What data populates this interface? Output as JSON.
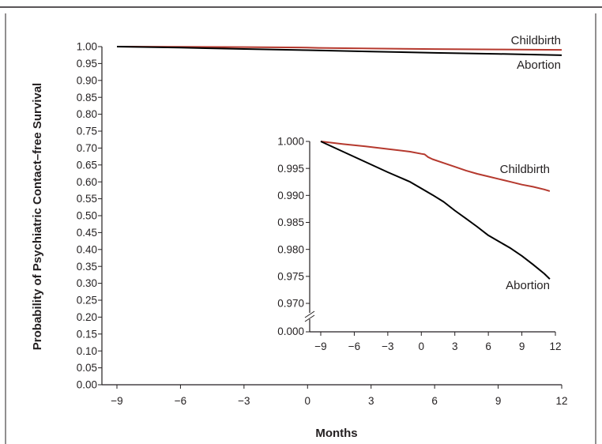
{
  "chart_data": [
    {
      "id": "main",
      "type": "line",
      "xlabel": "Months",
      "ylabel": "Probability of Psychiatric Contact–free Survival",
      "xlim": [
        -9,
        12
      ],
      "ylim": [
        0,
        1
      ],
      "x_ticks": [
        -9,
        -6,
        -3,
        0,
        3,
        6,
        9,
        12
      ],
      "x_tick_labels": [
        "−9",
        "−6",
        "−3",
        "0",
        "3",
        "6",
        "9",
        "12"
      ],
      "y_ticks": [
        0,
        0.05,
        0.1,
        0.15,
        0.2,
        0.25,
        0.3,
        0.35,
        0.4,
        0.45,
        0.5,
        0.55,
        0.6,
        0.65,
        0.7,
        0.75,
        0.8,
        0.85,
        0.9,
        0.95,
        1.0
      ],
      "y_tick_labels": [
        "0.00",
        "0.05",
        "0.10",
        "0.15",
        "0.20",
        "0.25",
        "0.30",
        "0.35",
        "0.40",
        "0.45",
        "0.50",
        "0.55",
        "0.60",
        "0.65",
        "0.70",
        "0.75",
        "0.80",
        "0.85",
        "0.90",
        "0.95",
        "1.00"
      ],
      "grid": false,
      "series": [
        {
          "name": "Childbirth",
          "color": "#b5392e",
          "x": [
            -9,
            -6,
            -3,
            0,
            0.5,
            3,
            6,
            9,
            12
          ],
          "y": [
            1.0,
            0.9993,
            0.9985,
            0.9972,
            0.9962,
            0.9945,
            0.9928,
            0.9915,
            0.9905
          ]
        },
        {
          "name": "Abortion",
          "color": "#000000",
          "x": [
            -9,
            -6,
            -3,
            0,
            3,
            6,
            9,
            12
          ],
          "y": [
            1.0,
            0.997,
            0.993,
            0.9895,
            0.9855,
            0.9815,
            0.9785,
            0.9745
          ]
        }
      ]
    },
    {
      "id": "inset",
      "type": "line",
      "xlabel": "",
      "ylabel": "",
      "xlim": [
        -9,
        12
      ],
      "ylim": [
        0.97,
        1.0
      ],
      "axis_break": true,
      "x_ticks": [
        -9,
        -6,
        -3,
        0,
        3,
        6,
        9,
        12
      ],
      "x_tick_labels": [
        "−9",
        "−6",
        "−3",
        "0",
        "3",
        "6",
        "9",
        "12"
      ],
      "y_ticks": [
        0.97,
        0.975,
        0.98,
        0.985,
        0.99,
        0.995,
        1.0
      ],
      "y_tick_labels": [
        "0.970",
        "0.975",
        "0.980",
        "0.985",
        "0.990",
        "0.995",
        "1.000"
      ],
      "y_break_label": "0.000",
      "grid": false,
      "series": [
        {
          "name": "Childbirth",
          "color": "#b5392e",
          "x": [
            -9,
            -7,
            -5,
            -3,
            -1,
            0,
            0.3,
            0.6,
            1,
            2,
            3,
            4,
            5,
            6,
            7,
            8,
            9,
            10,
            11,
            11.5
          ],
          "y": [
            1.0,
            0.9995,
            0.9991,
            0.9986,
            0.9981,
            0.9977,
            0.9976,
            0.9971,
            0.9967,
            0.996,
            0.9953,
            0.9946,
            0.994,
            0.9935,
            0.993,
            0.9925,
            0.992,
            0.9916,
            0.9911,
            0.9908
          ]
        },
        {
          "name": "Abortion",
          "color": "#000000",
          "x": [
            -9,
            -7,
            -5,
            -3,
            -1,
            0,
            1,
            2,
            3,
            4,
            5,
            6,
            7,
            8,
            9,
            10,
            11,
            11.5
          ],
          "y": [
            1.0,
            0.9981,
            0.9962,
            0.9943,
            0.9925,
            0.9913,
            0.9901,
            0.9888,
            0.9872,
            0.9857,
            0.9842,
            0.9826,
            0.9814,
            0.9802,
            0.9788,
            0.9772,
            0.9755,
            0.9745
          ]
        }
      ]
    }
  ]
}
